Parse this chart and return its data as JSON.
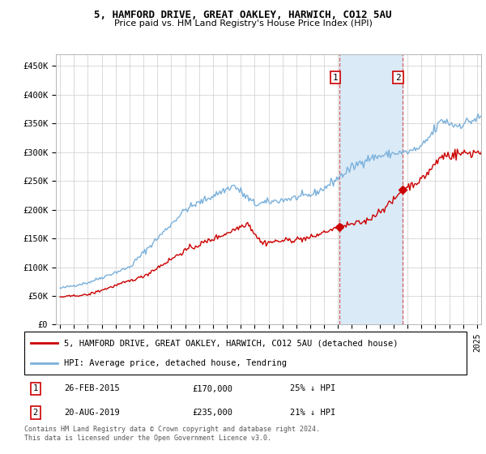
{
  "title": "5, HAMFORD DRIVE, GREAT OAKLEY, HARWICH, CO12 5AU",
  "subtitle": "Price paid vs. HM Land Registry's House Price Index (HPI)",
  "ylabel_vals": [
    0,
    50000,
    100000,
    150000,
    200000,
    250000,
    300000,
    350000,
    400000,
    450000
  ],
  "ylabel_labels": [
    "£0",
    "£50K",
    "£100K",
    "£150K",
    "£200K",
    "£250K",
    "£300K",
    "£350K",
    "£400K",
    "£450K"
  ],
  "ylim": [
    0,
    470000
  ],
  "xlim_min": 1994.7,
  "xlim_max": 2025.3,
  "sale1_date": 2015.12,
  "sale1_price": 170000,
  "sale2_date": 2019.62,
  "sale2_price": 235000,
  "legend_line1": "5, HAMFORD DRIVE, GREAT OAKLEY, HARWICH, CO12 5AU (detached house)",
  "legend_line2": "HPI: Average price, detached house, Tendring",
  "footnote": "Contains HM Land Registry data © Crown copyright and database right 2024.\nThis data is licensed under the Open Government Licence v3.0.",
  "hpi_color": "#7ab0db",
  "price_color": "#cc0000",
  "shade_color": "#daeaf7",
  "dashed_color": "#cc4444"
}
